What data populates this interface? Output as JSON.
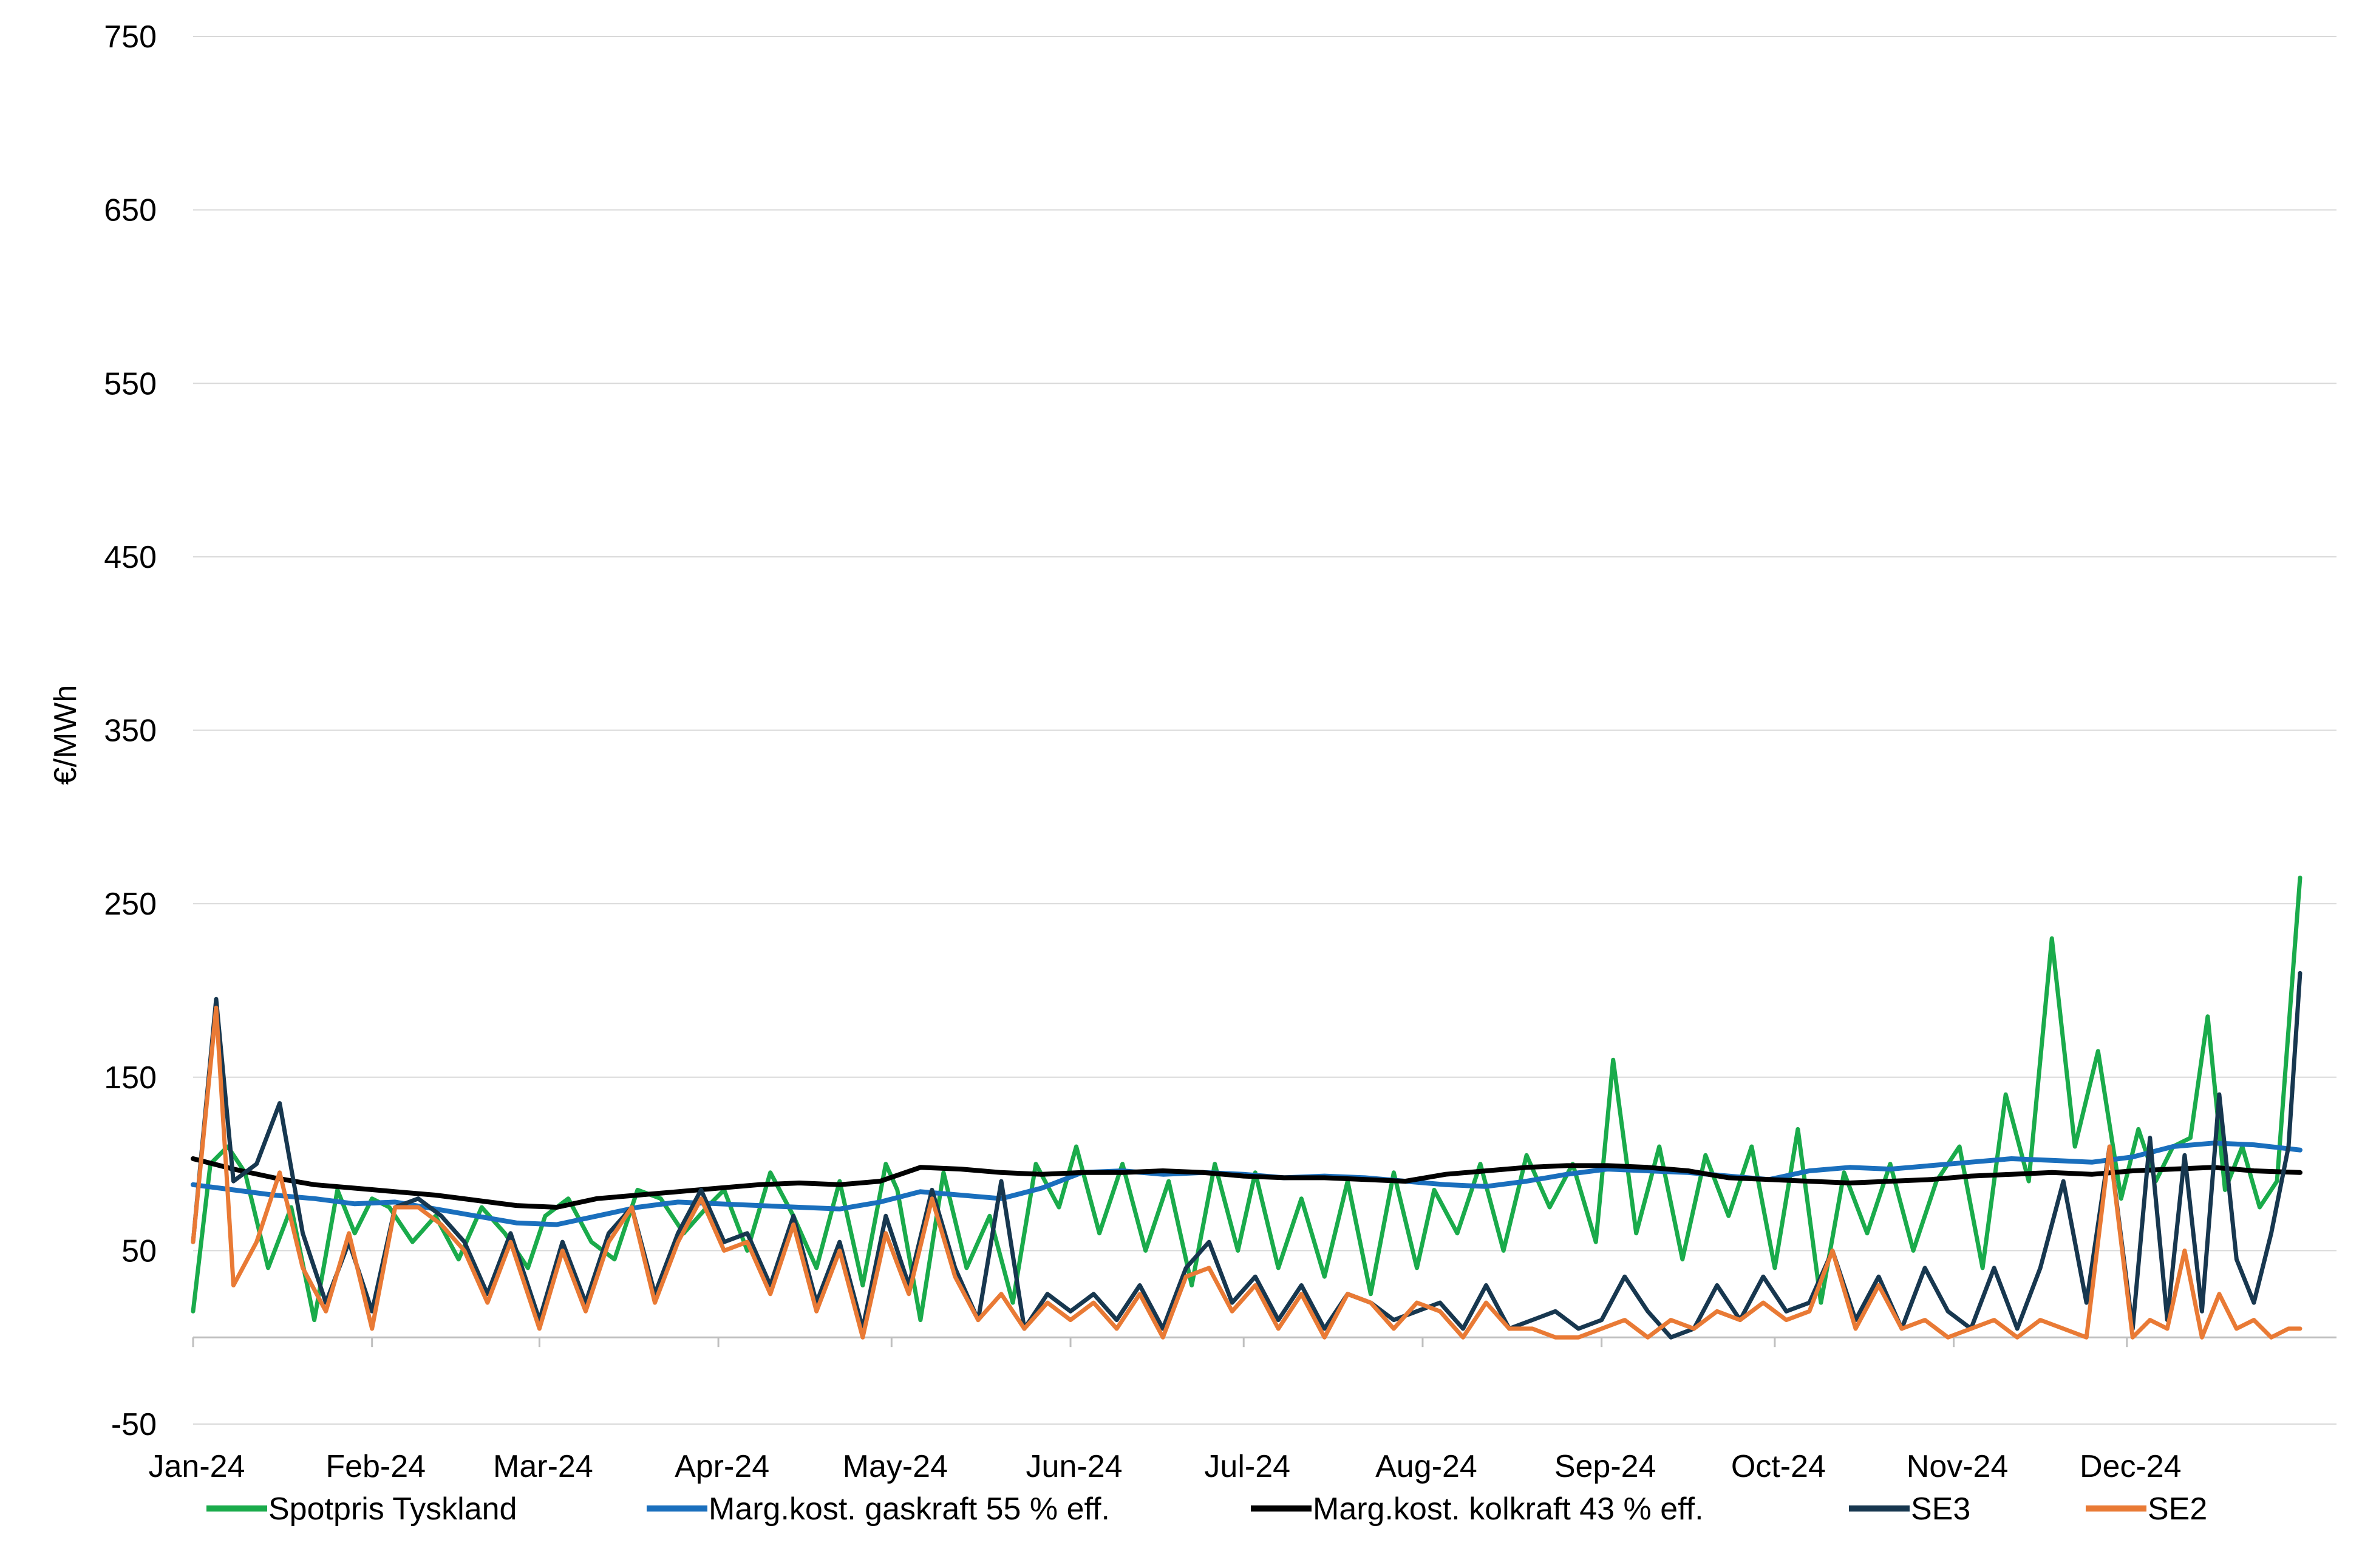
{
  "chart_data": {
    "type": "line",
    "title": "",
    "xlabel": "",
    "ylabel": "€/MWh",
    "ylim": [
      -50,
      750
    ],
    "yticks": [
      -50,
      50,
      150,
      250,
      350,
      450,
      550,
      650,
      750
    ],
    "ytick_labels": [
      "-50",
      "50",
      "150",
      "250",
      "350",
      "450",
      "550",
      "650",
      "750"
    ],
    "x_range": [
      "2024-01-01",
      "2024-12-31"
    ],
    "xticks": [
      "2024-01-01",
      "2024-02-01",
      "2024-03-01",
      "2024-04-01",
      "2024-05-01",
      "2024-06-01",
      "2024-07-01",
      "2024-08-01",
      "2024-09-01",
      "2024-10-01",
      "2024-11-01",
      "2024-12-01"
    ],
    "xtick_labels": [
      "Jan-24",
      "Feb-24",
      "Mar-24",
      "Apr-24",
      "May-24",
      "Jun-24",
      "Jul-24",
      "Aug-24",
      "Sep-24",
      "Oct-24",
      "Nov-24",
      "Dec-24"
    ],
    "grid": "horizontal",
    "legend_position": "bottom",
    "series": [
      {
        "name": "Spotpris Tyskland",
        "color": "#1aab4b",
        "x": [
          "2024-01-01",
          "2024-01-04",
          "2024-01-07",
          "2024-01-10",
          "2024-01-14",
          "2024-01-18",
          "2024-01-22",
          "2024-01-26",
          "2024-01-29",
          "2024-02-01",
          "2024-02-04",
          "2024-02-08",
          "2024-02-12",
          "2024-02-16",
          "2024-02-20",
          "2024-02-24",
          "2024-02-28",
          "2024-03-02",
          "2024-03-06",
          "2024-03-10",
          "2024-03-14",
          "2024-03-18",
          "2024-03-22",
          "2024-03-26",
          "2024-03-30",
          "2024-04-02",
          "2024-04-06",
          "2024-04-10",
          "2024-04-14",
          "2024-04-18",
          "2024-04-22",
          "2024-04-26",
          "2024-04-30",
          "2024-05-02",
          "2024-05-06",
          "2024-05-10",
          "2024-05-14",
          "2024-05-18",
          "2024-05-22",
          "2024-05-26",
          "2024-05-30",
          "2024-06-02",
          "2024-06-06",
          "2024-06-10",
          "2024-06-14",
          "2024-06-18",
          "2024-06-22",
          "2024-06-26",
          "2024-06-30",
          "2024-07-03",
          "2024-07-07",
          "2024-07-11",
          "2024-07-15",
          "2024-07-19",
          "2024-07-23",
          "2024-07-27",
          "2024-07-31",
          "2024-08-03",
          "2024-08-07",
          "2024-08-11",
          "2024-08-15",
          "2024-08-19",
          "2024-08-23",
          "2024-08-27",
          "2024-08-31",
          "2024-09-03",
          "2024-09-07",
          "2024-09-11",
          "2024-09-15",
          "2024-09-19",
          "2024-09-23",
          "2024-09-27",
          "2024-10-01",
          "2024-10-05",
          "2024-10-09",
          "2024-10-13",
          "2024-10-17",
          "2024-10-21",
          "2024-10-25",
          "2024-10-29",
          "2024-11-02",
          "2024-11-06",
          "2024-11-10",
          "2024-11-14",
          "2024-11-18",
          "2024-11-22",
          "2024-11-26",
          "2024-11-30",
          "2024-12-03",
          "2024-12-06",
          "2024-12-09",
          "2024-12-12",
          "2024-12-15",
          "2024-12-18",
          "2024-12-21",
          "2024-12-24",
          "2024-12-27",
          "2024-12-31"
        ],
        "y": [
          15,
          100,
          110,
          95,
          40,
          75,
          10,
          85,
          60,
          80,
          75,
          55,
          70,
          45,
          75,
          60,
          40,
          70,
          80,
          55,
          45,
          85,
          80,
          60,
          75,
          85,
          50,
          95,
          70,
          40,
          90,
          30,
          100,
          85,
          10,
          95,
          40,
          70,
          20,
          100,
          75,
          110,
          60,
          100,
          50,
          90,
          30,
          100,
          50,
          95,
          40,
          80,
          35,
          90,
          25,
          95,
          40,
          85,
          60,
          100,
          50,
          105,
          75,
          100,
          55,
          160,
          60,
          110,
          45,
          105,
          70,
          110,
          40,
          120,
          20,
          95,
          60,
          100,
          50,
          90,
          110,
          40,
          140,
          90,
          230,
          110,
          165,
          80,
          120,
          90,
          110,
          115,
          185,
          85,
          110,
          75,
          90,
          265
        ]
      },
      {
        "name": "Marg.kost. gaskraft 55 % eff.",
        "color": "#1a6fbd",
        "x": [
          "2024-01-01",
          "2024-01-08",
          "2024-01-15",
          "2024-01-22",
          "2024-01-29",
          "2024-02-05",
          "2024-02-12",
          "2024-02-19",
          "2024-02-26",
          "2024-03-04",
          "2024-03-11",
          "2024-03-18",
          "2024-03-25",
          "2024-04-01",
          "2024-04-08",
          "2024-04-15",
          "2024-04-22",
          "2024-04-29",
          "2024-05-06",
          "2024-05-13",
          "2024-05-20",
          "2024-05-27",
          "2024-06-03",
          "2024-06-10",
          "2024-06-17",
          "2024-06-24",
          "2024-07-01",
          "2024-07-08",
          "2024-07-15",
          "2024-07-22",
          "2024-07-29",
          "2024-08-05",
          "2024-08-12",
          "2024-08-19",
          "2024-08-26",
          "2024-09-02",
          "2024-09-09",
          "2024-09-16",
          "2024-09-23",
          "2024-09-30",
          "2024-10-07",
          "2024-10-14",
          "2024-10-21",
          "2024-10-28",
          "2024-11-04",
          "2024-11-11",
          "2024-11-18",
          "2024-11-25",
          "2024-12-02",
          "2024-12-09",
          "2024-12-16",
          "2024-12-23",
          "2024-12-31"
        ],
        "y": [
          88,
          85,
          82,
          80,
          77,
          78,
          74,
          70,
          66,
          65,
          70,
          75,
          78,
          77,
          76,
          75,
          74,
          78,
          84,
          82,
          80,
          86,
          95,
          96,
          94,
          95,
          94,
          92,
          93,
          92,
          90,
          88,
          87,
          90,
          94,
          97,
          96,
          95,
          93,
          91,
          96,
          98,
          97,
          99,
          101,
          103,
          102,
          101,
          104,
          110,
          112,
          111,
          108
        ]
      },
      {
        "name": "Marg.kost. kolkraft 43 % eff.",
        "color": "#000000",
        "x": [
          "2024-01-01",
          "2024-01-08",
          "2024-01-15",
          "2024-01-22",
          "2024-01-29",
          "2024-02-05",
          "2024-02-12",
          "2024-02-19",
          "2024-02-26",
          "2024-03-04",
          "2024-03-11",
          "2024-03-18",
          "2024-03-25",
          "2024-04-01",
          "2024-04-08",
          "2024-04-15",
          "2024-04-22",
          "2024-04-29",
          "2024-05-06",
          "2024-05-13",
          "2024-05-20",
          "2024-05-27",
          "2024-06-03",
          "2024-06-10",
          "2024-06-17",
          "2024-06-24",
          "2024-07-01",
          "2024-07-08",
          "2024-07-15",
          "2024-07-22",
          "2024-07-29",
          "2024-08-05",
          "2024-08-12",
          "2024-08-19",
          "2024-08-26",
          "2024-09-02",
          "2024-09-09",
          "2024-09-16",
          "2024-09-23",
          "2024-09-30",
          "2024-10-07",
          "2024-10-14",
          "2024-10-21",
          "2024-10-28",
          "2024-11-04",
          "2024-11-11",
          "2024-11-18",
          "2024-11-25",
          "2024-12-02",
          "2024-12-09",
          "2024-12-16",
          "2024-12-23",
          "2024-12-31"
        ],
        "y": [
          103,
          97,
          92,
          88,
          86,
          84,
          82,
          79,
          76,
          75,
          80,
          82,
          84,
          86,
          88,
          89,
          88,
          90,
          98,
          97,
          95,
          94,
          95,
          95,
          96,
          95,
          93,
          92,
          92,
          91,
          90,
          94,
          96,
          98,
          99,
          99,
          98,
          96,
          92,
          91,
          90,
          89,
          90,
          91,
          93,
          94,
          95,
          94,
          96,
          97,
          98,
          96,
          95
        ]
      },
      {
        "name": "SE3",
        "color": "#17374f",
        "x": [
          "2024-01-01",
          "2024-01-05",
          "2024-01-08",
          "2024-01-12",
          "2024-01-16",
          "2024-01-20",
          "2024-01-24",
          "2024-01-28",
          "2024-02-01",
          "2024-02-05",
          "2024-02-09",
          "2024-02-13",
          "2024-02-17",
          "2024-02-21",
          "2024-02-25",
          "2024-03-01",
          "2024-03-05",
          "2024-03-09",
          "2024-03-13",
          "2024-03-17",
          "2024-03-21",
          "2024-03-25",
          "2024-03-29",
          "2024-04-02",
          "2024-04-06",
          "2024-04-10",
          "2024-04-14",
          "2024-04-18",
          "2024-04-22",
          "2024-04-26",
          "2024-04-30",
          "2024-05-04",
          "2024-05-08",
          "2024-05-12",
          "2024-05-16",
          "2024-05-20",
          "2024-05-24",
          "2024-05-28",
          "2024-06-01",
          "2024-06-05",
          "2024-06-09",
          "2024-06-13",
          "2024-06-17",
          "2024-06-21",
          "2024-06-25",
          "2024-06-29",
          "2024-07-03",
          "2024-07-07",
          "2024-07-11",
          "2024-07-15",
          "2024-07-19",
          "2024-07-23",
          "2024-07-27",
          "2024-07-31",
          "2024-08-04",
          "2024-08-08",
          "2024-08-12",
          "2024-08-16",
          "2024-08-20",
          "2024-08-24",
          "2024-08-28",
          "2024-09-01",
          "2024-09-05",
          "2024-09-09",
          "2024-09-13",
          "2024-09-17",
          "2024-09-21",
          "2024-09-25",
          "2024-09-29",
          "2024-10-03",
          "2024-10-07",
          "2024-10-11",
          "2024-10-15",
          "2024-10-19",
          "2024-10-23",
          "2024-10-27",
          "2024-10-31",
          "2024-11-04",
          "2024-11-08",
          "2024-11-12",
          "2024-11-16",
          "2024-11-20",
          "2024-11-24",
          "2024-11-28",
          "2024-12-02",
          "2024-12-05",
          "2024-12-08",
          "2024-12-11",
          "2024-12-14",
          "2024-12-17",
          "2024-12-20",
          "2024-12-23",
          "2024-12-26",
          "2024-12-29",
          "2024-12-31"
        ],
        "y": [
          55,
          195,
          90,
          100,
          135,
          60,
          20,
          55,
          15,
          75,
          80,
          70,
          55,
          25,
          60,
          10,
          55,
          20,
          60,
          75,
          25,
          60,
          85,
          55,
          60,
          30,
          70,
          20,
          55,
          5,
          70,
          30,
          85,
          40,
          10,
          90,
          5,
          25,
          15,
          25,
          10,
          30,
          5,
          40,
          55,
          20,
          35,
          10,
          30,
          5,
          25,
          20,
          10,
          15,
          20,
          5,
          30,
          5,
          10,
          15,
          5,
          10,
          35,
          15,
          0,
          5,
          30,
          10,
          35,
          15,
          20,
          50,
          10,
          35,
          5,
          40,
          15,
          5,
          40,
          5,
          40,
          90,
          20,
          110,
          5,
          115,
          10,
          105,
          15,
          140,
          45,
          20,
          60,
          110,
          210
        ]
      },
      {
        "name": "SE2",
        "color": "#e97a35",
        "x": [
          "2024-01-01",
          "2024-01-05",
          "2024-01-08",
          "2024-01-12",
          "2024-01-16",
          "2024-01-20",
          "2024-01-24",
          "2024-01-28",
          "2024-02-01",
          "2024-02-05",
          "2024-02-09",
          "2024-02-13",
          "2024-02-17",
          "2024-02-21",
          "2024-02-25",
          "2024-03-01",
          "2024-03-05",
          "2024-03-09",
          "2024-03-13",
          "2024-03-17",
          "2024-03-21",
          "2024-03-25",
          "2024-03-29",
          "2024-04-02",
          "2024-04-06",
          "2024-04-10",
          "2024-04-14",
          "2024-04-18",
          "2024-04-22",
          "2024-04-26",
          "2024-04-30",
          "2024-05-04",
          "2024-05-08",
          "2024-05-12",
          "2024-05-16",
          "2024-05-20",
          "2024-05-24",
          "2024-05-28",
          "2024-06-01",
          "2024-06-05",
          "2024-06-09",
          "2024-06-13",
          "2024-06-17",
          "2024-06-21",
          "2024-06-25",
          "2024-06-29",
          "2024-07-03",
          "2024-07-07",
          "2024-07-11",
          "2024-07-15",
          "2024-07-19",
          "2024-07-23",
          "2024-07-27",
          "2024-07-31",
          "2024-08-04",
          "2024-08-08",
          "2024-08-12",
          "2024-08-16",
          "2024-08-20",
          "2024-08-24",
          "2024-08-28",
          "2024-09-01",
          "2024-09-05",
          "2024-09-09",
          "2024-09-13",
          "2024-09-17",
          "2024-09-21",
          "2024-09-25",
          "2024-09-29",
          "2024-10-03",
          "2024-10-07",
          "2024-10-11",
          "2024-10-15",
          "2024-10-19",
          "2024-10-23",
          "2024-10-27",
          "2024-10-31",
          "2024-11-04",
          "2024-11-08",
          "2024-11-12",
          "2024-11-16",
          "2024-11-20",
          "2024-11-24",
          "2024-11-28",
          "2024-12-02",
          "2024-12-05",
          "2024-12-08",
          "2024-12-11",
          "2024-12-14",
          "2024-12-17",
          "2024-12-20",
          "2024-12-23",
          "2024-12-26",
          "2024-12-29",
          "2024-12-31"
        ],
        "y": [
          55,
          190,
          30,
          55,
          95,
          40,
          15,
          60,
          5,
          75,
          75,
          65,
          50,
          20,
          55,
          5,
          50,
          15,
          55,
          75,
          20,
          55,
          80,
          50,
          55,
          25,
          65,
          15,
          50,
          0,
          60,
          25,
          80,
          35,
          10,
          25,
          5,
          20,
          10,
          20,
          5,
          25,
          0,
          35,
          40,
          15,
          30,
          5,
          25,
          0,
          25,
          20,
          5,
          20,
          15,
          0,
          20,
          5,
          5,
          0,
          0,
          5,
          10,
          0,
          10,
          5,
          15,
          10,
          20,
          10,
          15,
          50,
          5,
          30,
          5,
          10,
          0,
          5,
          10,
          0,
          10,
          5,
          0,
          110,
          0,
          10,
          5,
          50,
          0,
          25,
          5,
          10,
          0,
          5,
          5
        ]
      }
    ]
  }
}
